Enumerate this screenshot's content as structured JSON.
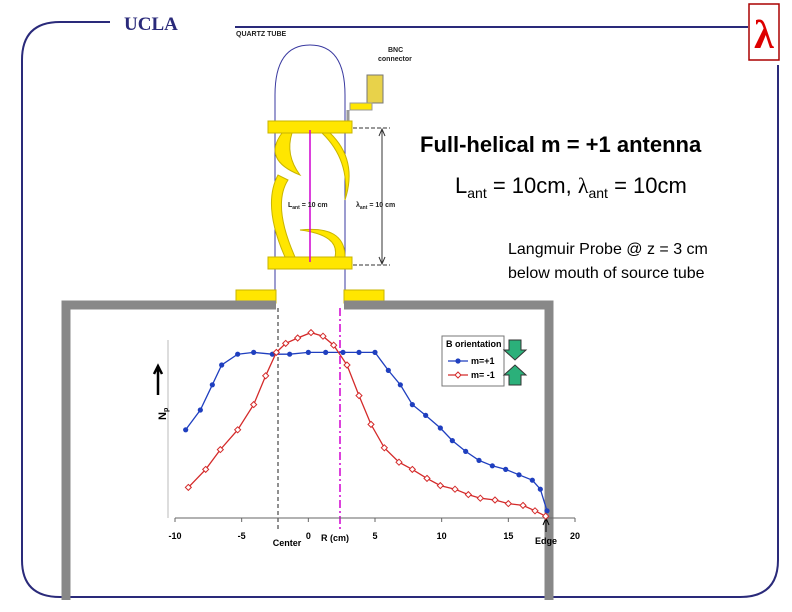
{
  "header": {
    "logo": "UCLA",
    "symbol": "λ"
  },
  "diagram": {
    "tube_label": "QUARTZ TUBE",
    "bnc_label_1": "BNC",
    "bnc_label_2": "connector",
    "length_label": {
      "main": "L",
      "sub": "ant",
      "rest": " = 10 cm"
    },
    "wavelength_label": {
      "main": "λ",
      "sub": "ant",
      "rest": " = 10 cm"
    }
  },
  "heading": {
    "title": "Full-helical m = +1 antenna",
    "params": {
      "l": "L",
      "l_sub": "ant",
      "l_rest": " = 10cm, ",
      "lam": "λ",
      "lam_sub": "ant",
      "lam_rest": " = 10cm"
    },
    "probe_1": "Langmuir Probe @ z = 3 cm",
    "probe_2": "below mouth of source tube"
  },
  "chart_data": {
    "type": "line",
    "xlabel": "R (cm)",
    "ylabel": "N",
    "ylabel_sub": "p",
    "annotations": [
      "Center",
      "Edge"
    ],
    "legend_title": "B orientation",
    "xlim": [
      -10,
      20
    ],
    "ylim": [
      0,
      1.1
    ],
    "xticks": [
      -10,
      -5,
      0,
      5,
      10,
      15,
      20
    ],
    "series": [
      {
        "name": "m=+1",
        "color": "#1f3fbf",
        "marker": "circle",
        "x": [
          -9.2,
          -8.1,
          -7.2,
          -6.5,
          -5.3,
          -4.1,
          -2.7,
          -1.4,
          0,
          1.3,
          2.6,
          3.8,
          5,
          6,
          6.9,
          7.8,
          8.8,
          9.9,
          10.8,
          11.8,
          12.8,
          13.8,
          14.8,
          15.8,
          16.8,
          17.4,
          17.9
        ],
        "values": [
          0.49,
          0.6,
          0.74,
          0.85,
          0.91,
          0.92,
          0.91,
          0.91,
          0.92,
          0.92,
          0.92,
          0.92,
          0.92,
          0.82,
          0.74,
          0.63,
          0.57,
          0.5,
          0.43,
          0.37,
          0.32,
          0.29,
          0.27,
          0.24,
          0.21,
          0.16,
          0.04
        ]
      },
      {
        "name": "m= -1",
        "color": "#d42a2a",
        "marker": "diamond",
        "x": [
          -9.0,
          -7.7,
          -6.6,
          -5.3,
          -4.1,
          -3.2,
          -2.4,
          -1.7,
          -0.8,
          0.2,
          1.1,
          1.9,
          2.9,
          3.8,
          4.7,
          5.7,
          6.8,
          7.8,
          8.9,
          9.9,
          11.0,
          12.0,
          12.9,
          14.0,
          15.0,
          16.1,
          17.0,
          17.8
        ],
        "values": [
          0.17,
          0.27,
          0.38,
          0.49,
          0.63,
          0.79,
          0.92,
          0.97,
          1.0,
          1.03,
          1.01,
          0.96,
          0.85,
          0.68,
          0.52,
          0.39,
          0.31,
          0.27,
          0.22,
          0.18,
          0.16,
          0.13,
          0.11,
          0.1,
          0.08,
          0.07,
          0.04,
          0.01
        ]
      }
    ]
  }
}
